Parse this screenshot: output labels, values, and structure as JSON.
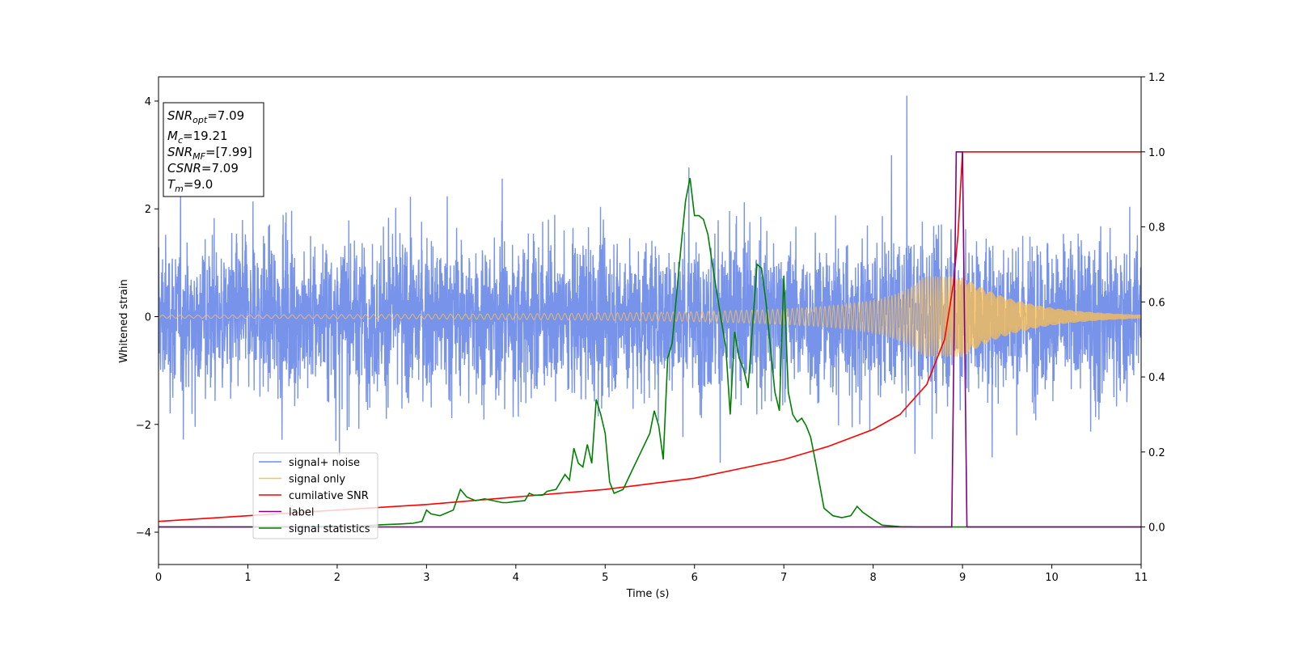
{
  "chart_data": {
    "type": "line",
    "xlabel": "Time (s)",
    "ylabel": "Whitened strain",
    "xlim": [
      0,
      11
    ],
    "ylim_left": [
      -4.6,
      4.45
    ],
    "ylim_right": [
      -0.1,
      1.2
    ],
    "x_ticks": [
      0,
      1,
      2,
      3,
      4,
      5,
      6,
      7,
      8,
      9,
      10,
      11
    ],
    "y_ticks_left": [
      -4,
      -2,
      0,
      2,
      4
    ],
    "y_ticks_right": [
      0.0,
      0.2,
      0.4,
      0.6,
      0.8,
      1.0,
      1.2
    ],
    "y_tick_labels_right": [
      "0.0",
      "0.2",
      "0.4",
      "0.6",
      "0.8",
      "1.0",
      "1.2"
    ],
    "grid": false,
    "legend_placement": "lower-left",
    "series": [
      {
        "name": "signal+ noise",
        "axis": "left",
        "color": "#6d8ae8",
        "description_values": {
          "typical_range": [
            -2.4,
            2.4
          ],
          "peak_range": [
            -3.6,
            4.1
          ]
        }
      },
      {
        "name": "signal only",
        "axis": "left",
        "color": "#ffc04d",
        "merger_time": 9.0,
        "max_amplitude": 0.75
      },
      {
        "name": "cumilative SNR",
        "axis": "right",
        "color": "#ff0000",
        "x": [
          0,
          1,
          2,
          3,
          4,
          5,
          6,
          7,
          7.5,
          8,
          8.3,
          8.6,
          8.8,
          8.9,
          8.95,
          9.0,
          11
        ],
        "y": [
          0.015,
          0.03,
          0.045,
          0.06,
          0.08,
          0.1,
          0.13,
          0.18,
          0.215,
          0.26,
          0.3,
          0.38,
          0.5,
          0.65,
          0.78,
          1.0,
          1.0
        ]
      },
      {
        "name": "label",
        "axis": "right",
        "color": "#800080",
        "x": [
          0,
          8.88,
          8.93,
          9.0,
          9.05,
          11
        ],
        "y": [
          0.0,
          0.0,
          1.0,
          1.0,
          0.0,
          0.0
        ]
      },
      {
        "name": "signal statistics",
        "axis": "right",
        "color": "#008000",
        "x": [
          0,
          0.5,
          1,
          1.5,
          2,
          2.3,
          2.5,
          2.7,
          2.85,
          2.95,
          3.0,
          3.05,
          3.15,
          3.3,
          3.38,
          3.45,
          3.55,
          3.65,
          3.75,
          3.85,
          3.9,
          4.0,
          4.1,
          4.15,
          4.2,
          4.3,
          4.35,
          4.45,
          4.55,
          4.6,
          4.65,
          4.7,
          4.75,
          4.8,
          4.85,
          4.9,
          4.95,
          5.0,
          5.05,
          5.1,
          5.2,
          5.3,
          5.4,
          5.5,
          5.55,
          5.6,
          5.65,
          5.7,
          5.75,
          5.8,
          5.85,
          5.9,
          5.95,
          6.0,
          6.05,
          6.1,
          6.15,
          6.2,
          6.3,
          6.35,
          6.4,
          6.45,
          6.5,
          6.55,
          6.6,
          6.7,
          6.75,
          6.8,
          6.9,
          6.95,
          7.0,
          7.05,
          7.1,
          7.15,
          7.2,
          7.25,
          7.3,
          7.35,
          7.45,
          7.55,
          7.65,
          7.75,
          7.82,
          7.88,
          8.0,
          8.1,
          8.3,
          8.5,
          9.0,
          11
        ],
        "y": [
          0.0,
          0.0,
          0.0,
          0.001,
          0.002,
          0.003,
          0.006,
          0.008,
          0.01,
          0.015,
          0.045,
          0.035,
          0.03,
          0.045,
          0.1,
          0.08,
          0.07,
          0.075,
          0.07,
          0.065,
          0.065,
          0.068,
          0.07,
          0.09,
          0.085,
          0.085,
          0.095,
          0.1,
          0.14,
          0.125,
          0.21,
          0.17,
          0.16,
          0.22,
          0.17,
          0.34,
          0.3,
          0.25,
          0.12,
          0.09,
          0.1,
          0.15,
          0.2,
          0.25,
          0.31,
          0.27,
          0.18,
          0.45,
          0.49,
          0.62,
          0.75,
          0.87,
          0.93,
          0.83,
          0.83,
          0.82,
          0.78,
          0.7,
          0.55,
          0.48,
          0.3,
          0.52,
          0.45,
          0.42,
          0.37,
          0.7,
          0.69,
          0.6,
          0.36,
          0.31,
          0.67,
          0.36,
          0.3,
          0.28,
          0.29,
          0.27,
          0.24,
          0.18,
          0.05,
          0.03,
          0.025,
          0.03,
          0.055,
          0.04,
          0.02,
          0.005,
          0.001,
          0.0,
          0.0,
          0.0
        ]
      }
    ],
    "annotation_box": {
      "lines": [
        {
          "main": "SNR",
          "sub": "opt",
          "rest": "=7.09"
        },
        {
          "main": "M",
          "sub": "c",
          "rest": "=19.21"
        },
        {
          "main": "SNR",
          "sub": "MF",
          "rest": "=[7.99]"
        },
        {
          "main": "CSNR",
          "sub": "",
          "rest": "=7.09"
        },
        {
          "main": "T",
          "sub": "m",
          "rest": "=9.0"
        }
      ]
    }
  }
}
